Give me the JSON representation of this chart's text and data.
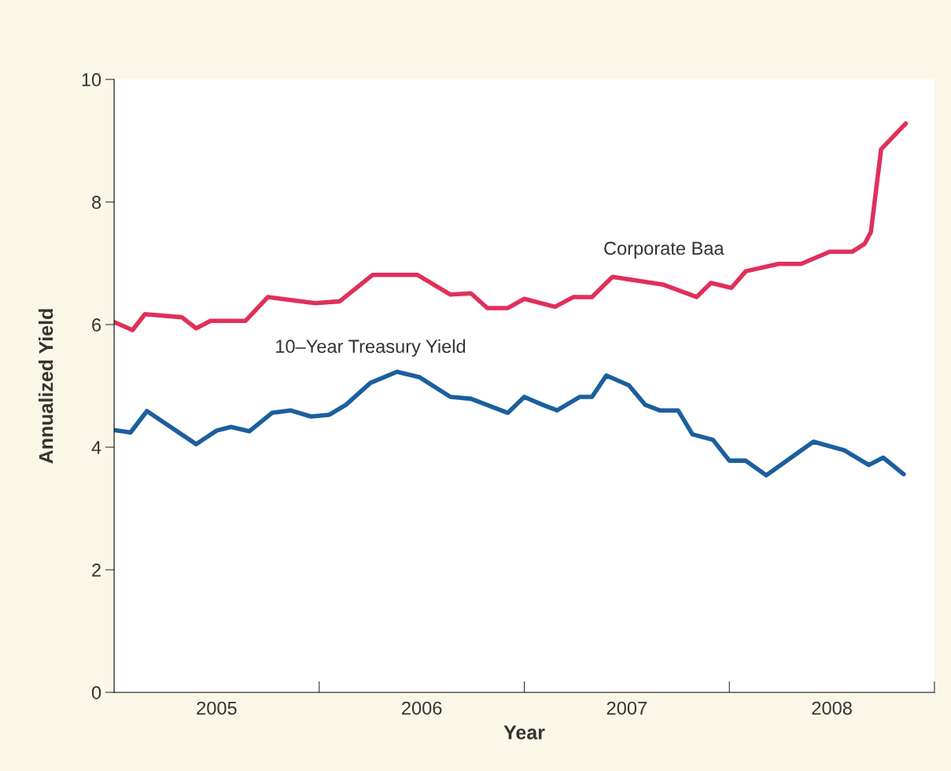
{
  "chart_data": {
    "type": "line",
    "xlabel": "Year",
    "ylabel": "Annualized Yield",
    "xlim": [
      2005,
      2009
    ],
    "ylim": [
      0,
      10
    ],
    "xticks": [
      {
        "value": 2005.5,
        "label": "2005"
      },
      {
        "value": 2006,
        "label": null
      },
      {
        "value": 2006.5,
        "label": "2006"
      },
      {
        "value": 2007,
        "label": null
      },
      {
        "value": 2007.5,
        "label": "2007"
      },
      {
        "value": 2008,
        "label": null
      },
      {
        "value": 2008.5,
        "label": "2008"
      },
      {
        "value": 2009,
        "label": null
      }
    ],
    "yticks": [
      0,
      2,
      4,
      6,
      8,
      10
    ],
    "grid": false,
    "legend": false,
    "marker": "none",
    "line_style": "solid",
    "series": [
      {
        "name": "Corporate Baa",
        "color": "#e0305a",
        "x": [
          2005.0,
          2005.09,
          2005.15,
          2005.33,
          2005.4,
          2005.47,
          2005.64,
          2005.75,
          2005.98,
          2006.1,
          2006.26,
          2006.48,
          2006.64,
          2006.74,
          2006.82,
          2006.92,
          2007.0,
          2007.15,
          2007.24,
          2007.33,
          2007.43,
          2007.68,
          2007.84,
          2007.91,
          2008.01,
          2008.08,
          2008.24,
          2008.35,
          2008.49,
          2008.6,
          2008.66,
          2008.69,
          2008.74,
          2008.86
        ],
        "values": [
          6.04,
          5.91,
          6.17,
          6.12,
          5.94,
          6.06,
          6.06,
          6.45,
          6.35,
          6.38,
          6.81,
          6.81,
          6.49,
          6.51,
          6.27,
          6.27,
          6.42,
          6.29,
          6.45,
          6.45,
          6.78,
          6.65,
          6.45,
          6.68,
          6.6,
          6.87,
          6.99,
          6.99,
          7.19,
          7.19,
          7.32,
          7.51,
          8.86,
          9.28
        ]
      },
      {
        "name": "10–Year Treasury Yield",
        "color": "#1c5f9e",
        "x": [
          2005.0,
          2005.08,
          2005.16,
          2005.4,
          2005.5,
          2005.57,
          2005.66,
          2005.77,
          2005.86,
          2005.96,
          2006.05,
          2006.13,
          2006.25,
          2006.38,
          2006.49,
          2006.64,
          2006.74,
          2006.92,
          2007.0,
          2007.09,
          2007.16,
          2007.27,
          2007.33,
          2007.4,
          2007.51,
          2007.59,
          2007.66,
          2007.75,
          2007.82,
          2007.92,
          2008.0,
          2008.08,
          2008.18,
          2008.41,
          2008.56,
          2008.68,
          2008.75,
          2008.85
        ],
        "values": [
          4.28,
          4.24,
          4.59,
          4.05,
          4.27,
          4.33,
          4.26,
          4.56,
          4.6,
          4.5,
          4.53,
          4.69,
          5.05,
          5.23,
          5.14,
          4.82,
          4.79,
          4.56,
          4.82,
          4.69,
          4.6,
          4.82,
          4.82,
          5.17,
          5.01,
          4.69,
          4.6,
          4.6,
          4.21,
          4.12,
          3.78,
          3.78,
          3.54,
          4.09,
          3.95,
          3.71,
          3.83,
          3.56
        ]
      }
    ]
  }
}
